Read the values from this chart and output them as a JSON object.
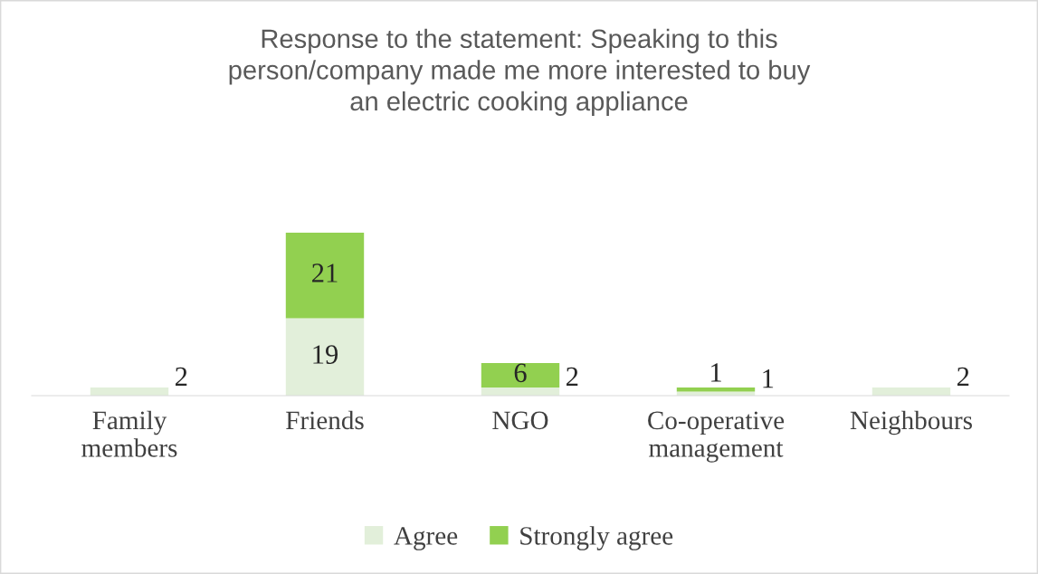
{
  "chart_data": {
    "type": "bar",
    "stacked": true,
    "title": "Response to the statement: Speaking to this\nperson/company made me more interested to buy\nan electric cooking appliance",
    "categories": [
      "Family\nmembers",
      "Friends",
      "NGO",
      "Co-operative\nmanagement",
      "Neighbours"
    ],
    "series": [
      {
        "name": "Agree",
        "color": "#e2efda",
        "values": [
          2,
          19,
          2,
          1,
          2
        ]
      },
      {
        "name": "Strongly agree",
        "color": "#92d050",
        "values": [
          null,
          21,
          6,
          1,
          null
        ]
      }
    ],
    "data_labels": true,
    "legend": "bottom"
  }
}
